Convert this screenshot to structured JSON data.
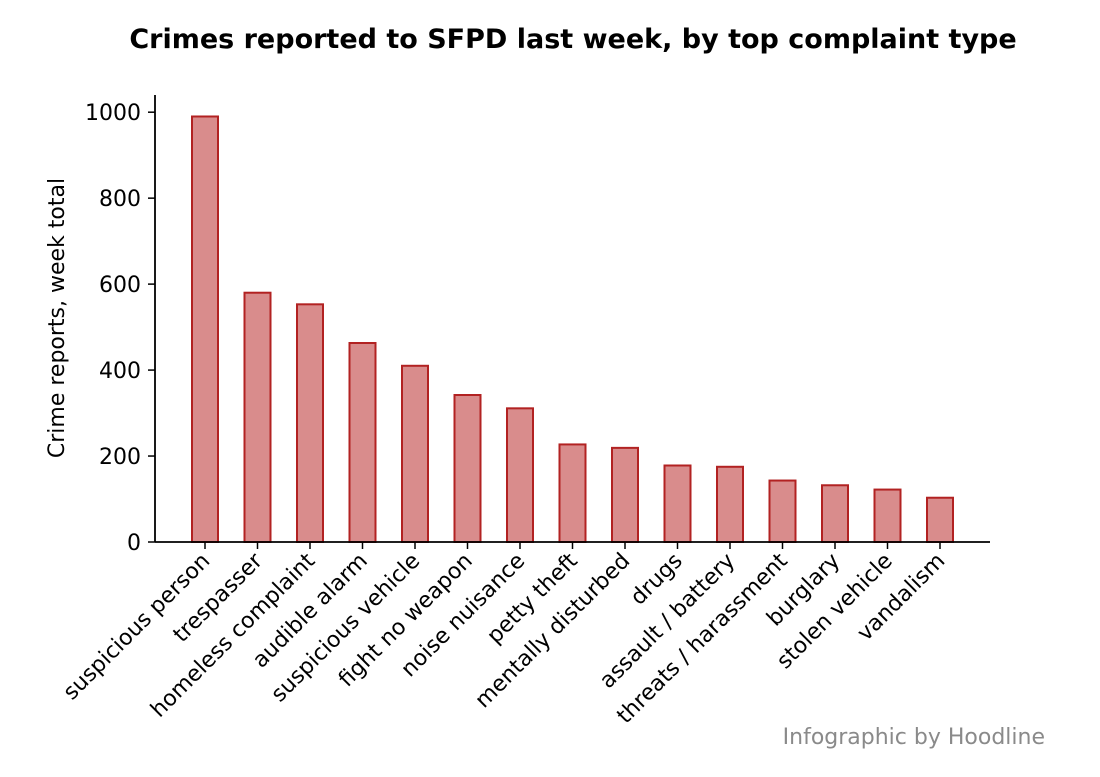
{
  "chart_data": {
    "type": "bar",
    "title": "Crimes reported to SFPD last week, by top complaint type",
    "xlabel": "",
    "ylabel": "Crime reports, week total",
    "categories": [
      "suspicious person",
      "trespasser",
      "homeless complaint",
      "audible alarm",
      "suspicious vehicle",
      "fight no weapon",
      "noise nuisance",
      "petty theft",
      "mentally disturbed",
      "drugs",
      "assault / battery",
      "threats / harassment",
      "burglary",
      "stolen vehicle",
      "vandalism"
    ],
    "values": [
      990,
      580,
      553,
      463,
      410,
      342,
      311,
      227,
      219,
      178,
      175,
      143,
      132,
      122,
      103
    ],
    "ylim": [
      0,
      1040
    ],
    "yticks": [
      "0",
      "200",
      "400",
      "600",
      "800",
      "1000"
    ],
    "grid": false,
    "legend": "none",
    "colors": {
      "bar_fill": "#d98c8c",
      "bar_stroke": "#b22222",
      "axis": "#000000",
      "credit": "#8a8a8a"
    }
  },
  "credit": "Infographic by Hoodline"
}
